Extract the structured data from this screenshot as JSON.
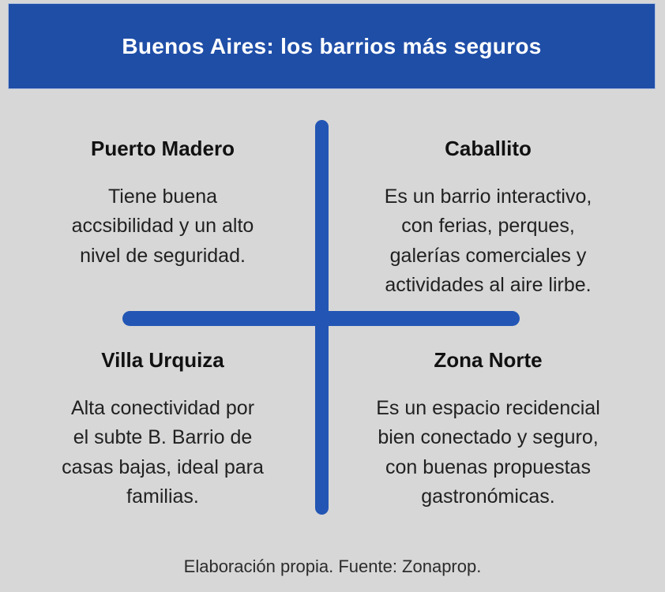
{
  "title": "Buenos Aires: los barrios más seguros",
  "quadrants": [
    {
      "position": "top-left",
      "name": "Puerto Madero",
      "description_lines": [
        "Tiene buena",
        "accsibilidad y un alto",
        "nivel de seguridad."
      ]
    },
    {
      "position": "top-right",
      "name": "Caballito",
      "description_lines": [
        "Es un barrio interactivo,",
        "con ferias, perques,",
        "galerías comerciales y",
        "actividades al aire lirbe."
      ]
    },
    {
      "position": "bottom-left",
      "name": "Villa Urquiza",
      "description_lines": [
        "Alta conectividad por",
        "el subte B. Barrio de",
        "casas bajas, ideal para",
        "familias."
      ]
    },
    {
      "position": "bottom-right",
      "name": "Zona Norte",
      "description_lines": [
        "Es un espacio recidencial",
        "bien conectado y seguro,",
        "con buenas propuestas",
        "gastronómicas."
      ]
    }
  ],
  "footer": "Elaboración propia. Fuente: Zonaprop.",
  "colors": {
    "banner_blue": "#1f4ea7",
    "cross_blue": "#2356b4",
    "background_gray": "#d7d7d7",
    "title_text": "#ffffff",
    "heading_text": "#111111",
    "body_text": "#212121",
    "footer_text": "#2c2c2c"
  }
}
